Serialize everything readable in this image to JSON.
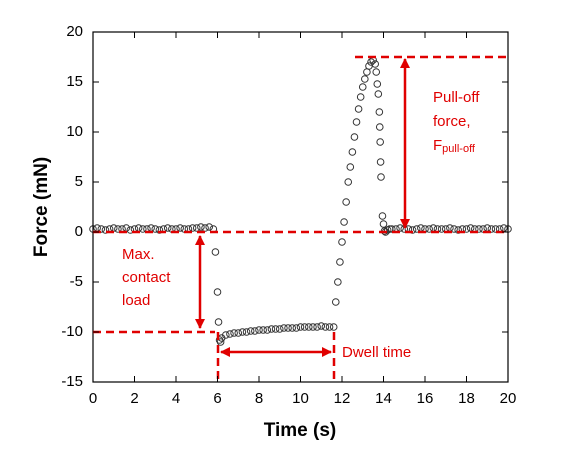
{
  "chart_data": {
    "type": "scatter",
    "x_label": "Time (s)",
    "y_label": "Force (mN)",
    "xlim": [
      0,
      20
    ],
    "ylim": [
      -15,
      20
    ],
    "xticks": [
      0,
      2,
      4,
      6,
      8,
      10,
      12,
      14,
      16,
      18,
      20
    ],
    "yticks": [
      -15,
      -10,
      -5,
      0,
      5,
      10,
      15,
      20
    ],
    "color": "#333333",
    "annotations": [
      "Pull-off",
      "force,",
      "F",
      "pull-off",
      "Max.",
      "contact",
      "load",
      "Dwell time"
    ],
    "x": [
      0,
      0.2,
      0.4,
      0.6,
      0.8,
      1,
      1.2,
      1.4,
      1.6,
      1.8,
      2,
      2.2,
      2.4,
      2.6,
      2.8,
      3,
      3.2,
      3.4,
      3.6,
      3.8,
      4,
      4.2,
      4.4,
      4.6,
      4.8,
      5,
      5.2,
      5.4,
      5.6,
      5.8,
      5.9,
      6,
      6.05,
      6.1,
      6.15,
      6.2,
      6.4,
      6.6,
      6.8,
      7,
      7.2,
      7.4,
      7.6,
      7.8,
      8,
      8.2,
      8.4,
      8.6,
      8.8,
      9,
      9.2,
      9.4,
      9.6,
      9.8,
      10,
      10.2,
      10.4,
      10.6,
      10.8,
      11,
      11.2,
      11.4,
      11.6,
      11.7,
      11.8,
      11.9,
      12,
      12.1,
      12.2,
      12.3,
      12.4,
      12.5,
      12.6,
      12.7,
      12.8,
      12.9,
      13,
      13.1,
      13.2,
      13.3,
      13.4,
      13.5,
      13.6,
      13.65,
      13.7,
      13.75,
      13.8,
      13.82,
      13.84,
      13.86,
      13.88,
      13.95,
      14,
      14.05,
      14.1,
      14.2,
      14.3,
      14.4,
      14.6,
      14.8,
      15,
      15.2,
      15.4,
      15.6,
      15.8,
      16,
      16.2,
      16.4,
      16.6,
      16.8,
      17,
      17.2,
      17.4,
      17.6,
      17.8,
      18,
      18.2,
      18.4,
      18.6,
      18.8,
      19,
      19.2,
      19.4,
      19.6,
      19.8,
      20
    ],
    "y": [
      0.3,
      0.4,
      0.3,
      0.2,
      0.3,
      0.4,
      0.3,
      0.3,
      0.4,
      0.2,
      0.3,
      0.4,
      0.3,
      0.3,
      0.4,
      0.3,
      0.2,
      0.3,
      0.4,
      0.3,
      0.3,
      0.4,
      0.3,
      0.3,
      0.4,
      0.4,
      0.5,
      0.4,
      0.5,
      0.3,
      -2,
      -6,
      -9,
      -10.8,
      -11,
      -10.6,
      -10.3,
      -10.2,
      -10.1,
      -10.1,
      -10,
      -10,
      -9.9,
      -9.9,
      -9.8,
      -9.8,
      -9.8,
      -9.7,
      -9.7,
      -9.7,
      -9.6,
      -9.6,
      -9.6,
      -9.6,
      -9.5,
      -9.5,
      -9.5,
      -9.5,
      -9.5,
      -9.4,
      -9.5,
      -9.5,
      -9.5,
      -7,
      -5,
      -3,
      -1,
      1,
      3,
      5,
      6.5,
      8,
      9.5,
      11,
      12.3,
      13.5,
      14.5,
      15.3,
      16,
      16.6,
      17,
      17.2,
      16.8,
      16,
      14.8,
      13.8,
      12,
      10.5,
      9,
      7,
      5.5,
      1.6,
      0.8,
      0.1,
      0,
      0.2,
      0.3,
      0.3,
      0.3,
      0.4,
      0.3,
      0.3,
      0.2,
      0.3,
      0.4,
      0.3,
      0.3,
      0.4,
      0.3,
      0.3,
      0.3,
      0.4,
      0.3,
      0.2,
      0.3,
      0.3,
      0.4,
      0.3,
      0.3,
      0.3,
      0.4,
      0.3,
      0.3,
      0.3,
      0.4,
      0.3
    ]
  }
}
